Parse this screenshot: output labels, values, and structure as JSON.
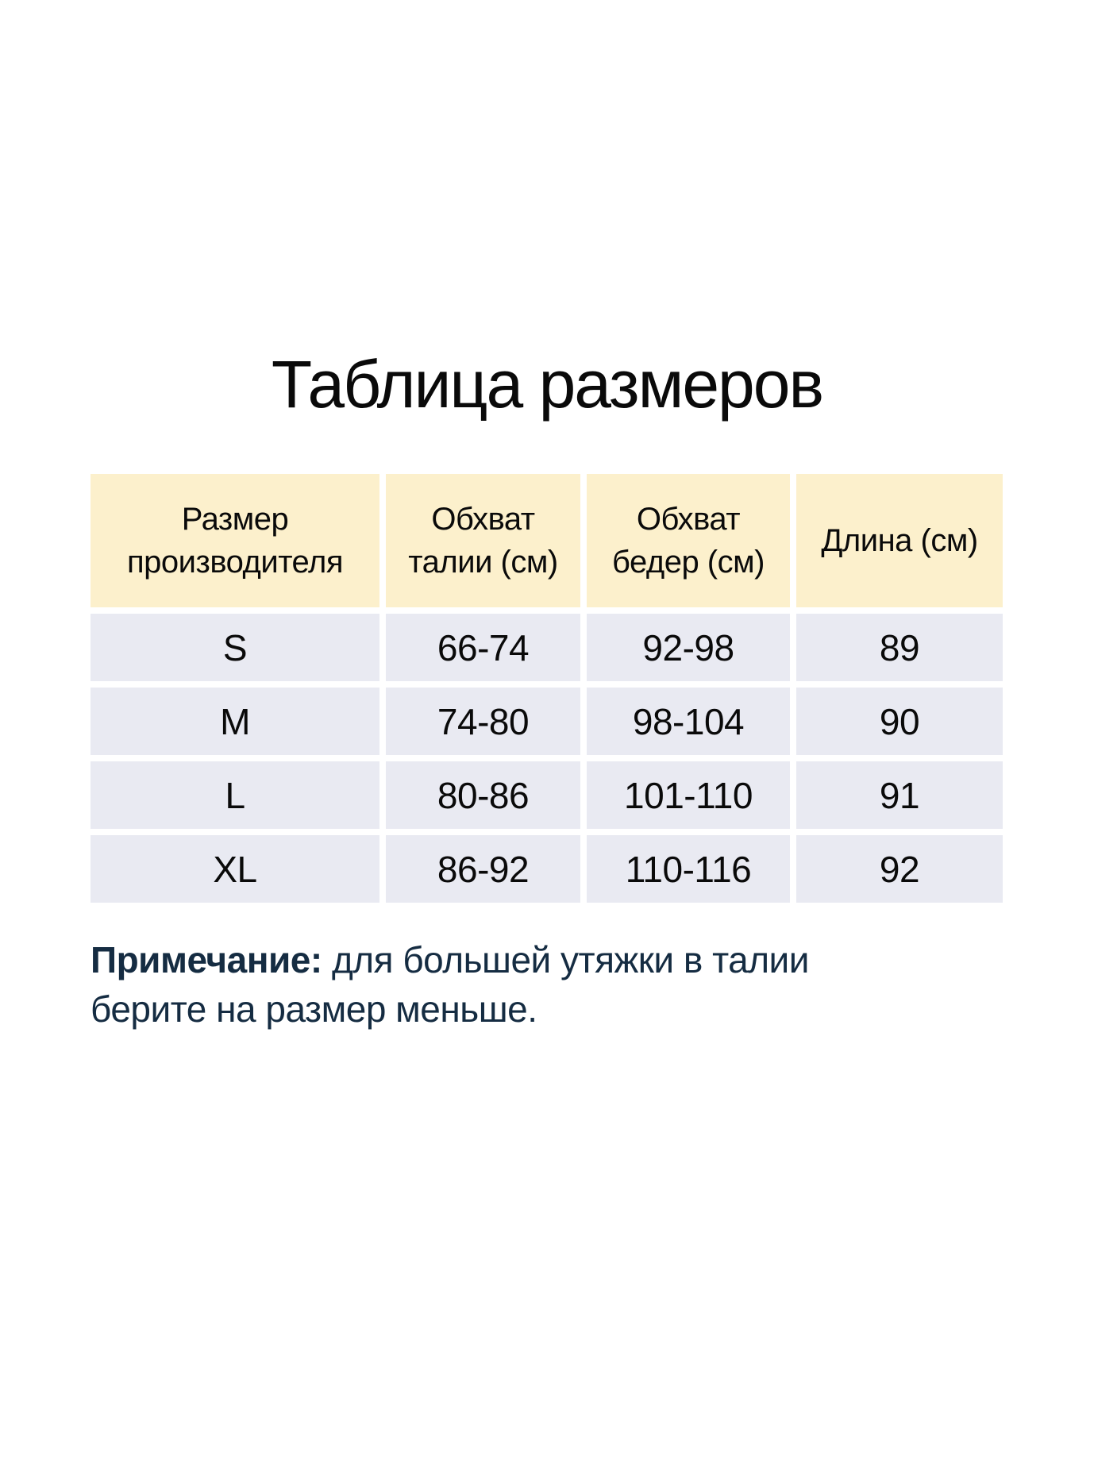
{
  "page_title": "Таблица размеров",
  "table": {
    "headers": [
      "Размер производителя",
      "Обхват талии (см)",
      "Обхват бедер (см)",
      "Длина (см)"
    ],
    "rows": [
      [
        "S",
        "66-74",
        "92-98",
        "89"
      ],
      [
        "M",
        "74-80",
        "98-104",
        "90"
      ],
      [
        "L",
        "80-86",
        "101-110",
        "91"
      ],
      [
        "XL",
        "86-92",
        "110-116",
        "92"
      ]
    ]
  },
  "note": {
    "label": "Примечание:",
    "text": " для большей утяжки в талии берите на размер меньше."
  },
  "colors": {
    "header_bg": "#fcf0cc",
    "row_bg": "#e9eaf2",
    "note_text": "#152c42",
    "body_text": "#0a0a0a"
  }
}
